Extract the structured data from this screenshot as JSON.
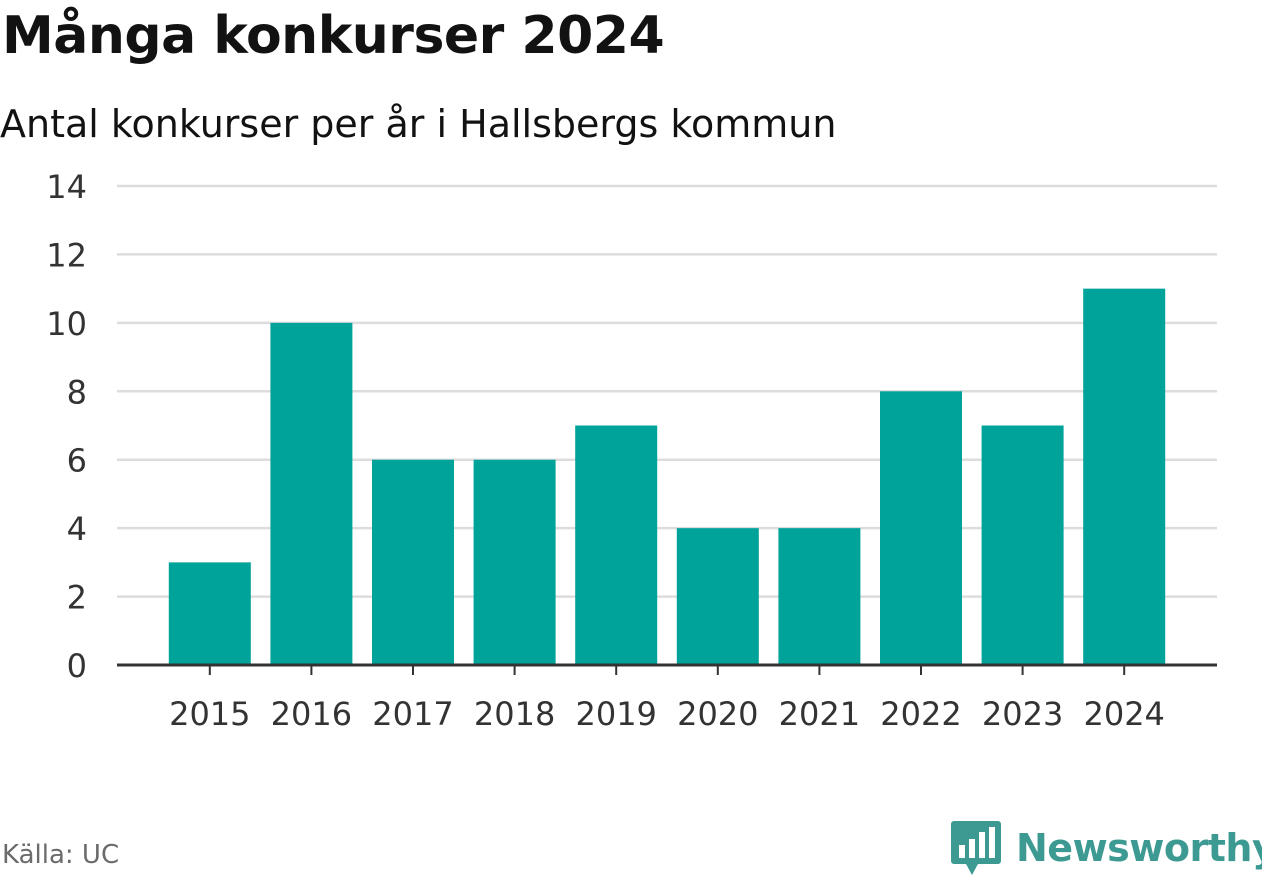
{
  "header": {
    "title": "Många konkurser 2024",
    "subtitle": "Antal konkurser per år i Hallsbergs kommun"
  },
  "footer": {
    "source": "Källa: UC",
    "brand": "Newsworthy"
  },
  "colors": {
    "bar": "#00a39a",
    "grid": "#dddddd",
    "axis": "#333333",
    "brand": "#3d9a92"
  },
  "chart_data": {
    "type": "bar",
    "title": "Många konkurser 2024",
    "subtitle": "Antal konkurser per år i Hallsbergs kommun",
    "xlabel": "",
    "ylabel": "",
    "categories": [
      "2015",
      "2016",
      "2017",
      "2018",
      "2019",
      "2020",
      "2021",
      "2022",
      "2023",
      "2024"
    ],
    "values": [
      3,
      10,
      6,
      6,
      7,
      4,
      4,
      8,
      7,
      11
    ],
    "ylim": [
      0,
      14
    ],
    "yticks": [
      0,
      2,
      4,
      6,
      8,
      10,
      12,
      14
    ],
    "grid": true,
    "legend": "none"
  }
}
